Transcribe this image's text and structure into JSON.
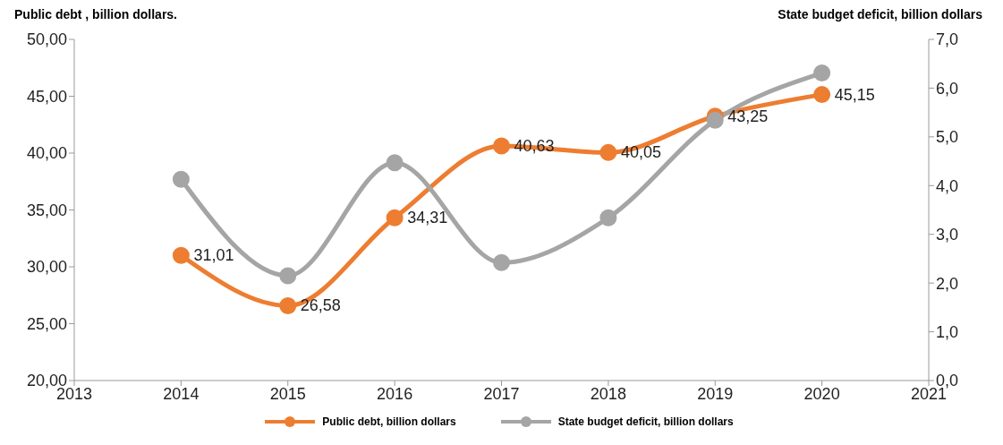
{
  "chart_data": {
    "type": "line",
    "ylabel": "Public debt , billion dollars.",
    "y2label": "State budget deficit, billion dollars",
    "x": [
      2014,
      2015,
      2016,
      2017,
      2018,
      2019,
      2020
    ],
    "series": [
      {
        "name": "Public debt, billion dollars",
        "color": "#ed7d31",
        "values": [
          31.01,
          26.58,
          34.31,
          40.63,
          40.05,
          43.25,
          45.15
        ],
        "value_labels": [
          "31,01",
          "26,58",
          "34,31",
          "40,63",
          "40,05",
          "43,25",
          "45,15"
        ]
      },
      {
        "name": "State budget deficit, billion dollars",
        "color": "#a5a5a5",
        "axis": "y2",
        "values": [
          4.13,
          2.15,
          4.47,
          2.42,
          3.34,
          5.34,
          6.31
        ]
      }
    ],
    "xlim": [
      2013,
      2021
    ],
    "xticks": [
      2013,
      2014,
      2015,
      2016,
      2017,
      2018,
      2019,
      2020,
      2021
    ],
    "ylim": [
      20,
      50
    ],
    "yticks": [
      {
        "value": 20,
        "label": "20,00"
      },
      {
        "value": 25,
        "label": "25,00"
      },
      {
        "value": 30,
        "label": "30,00"
      },
      {
        "value": 35,
        "label": "35,00"
      },
      {
        "value": 40,
        "label": "40,00"
      },
      {
        "value": 45,
        "label": "45,00"
      },
      {
        "value": 50,
        "label": "50,00"
      }
    ],
    "y2lim": [
      0,
      7
    ],
    "y2ticks": [
      {
        "value": 0,
        "label": "0,0"
      },
      {
        "value": 1,
        "label": "1,0"
      },
      {
        "value": 2,
        "label": "2,0"
      },
      {
        "value": 3,
        "label": "3,0"
      },
      {
        "value": 4,
        "label": "4,0"
      },
      {
        "value": 5,
        "label": "5,0"
      },
      {
        "value": 6,
        "label": "6,0"
      },
      {
        "value": 7,
        "label": "7,0"
      }
    ],
    "grid": false,
    "legend": "bottom",
    "marker": "circle",
    "line_style": "solid"
  }
}
